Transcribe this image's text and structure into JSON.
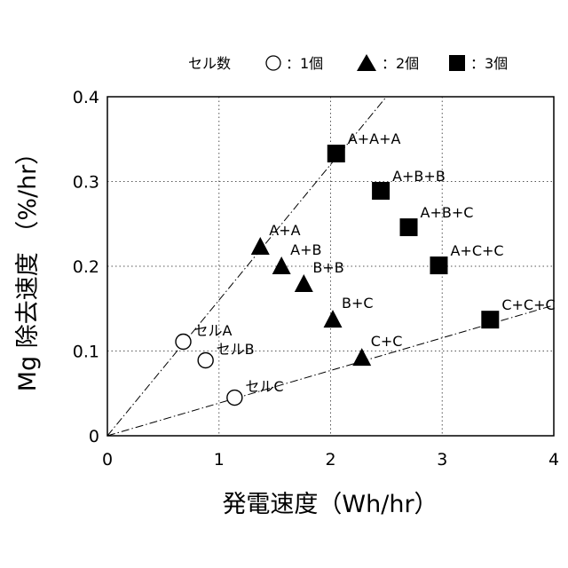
{
  "chart_data": {
    "type": "scatter",
    "title": "",
    "xlabel": "発電速度（Wh/hr）",
    "ylabel": "Mg 除去速度 （%/hr）",
    "xlim": [
      0,
      4
    ],
    "ylim": [
      0,
      0.4
    ],
    "x_ticks": [
      "0",
      "1",
      "2",
      "3",
      "4"
    ],
    "y_ticks": [
      "0",
      "0.1",
      "0.2",
      "0.3",
      "0.4"
    ],
    "grid": true,
    "legend_placement": "top",
    "legend": {
      "title": "セル数",
      "entries": [
        {
          "marker": "circle-open",
          "label": "：1個"
        },
        {
          "marker": "triangle-filled",
          "label": "：2個"
        },
        {
          "marker": "square-filled",
          "label": "：3個"
        }
      ]
    },
    "series": [
      {
        "marker": "circle-open",
        "points": [
          {
            "label": "セルA",
            "x": 0.68,
            "y": 0.111
          },
          {
            "label": "セルB",
            "x": 0.88,
            "y": 0.089
          },
          {
            "label": "セルC",
            "x": 1.14,
            "y": 0.045
          }
        ]
      },
      {
        "marker": "triangle-filled",
        "points": [
          {
            "label": "A+A",
            "x": 1.37,
            "y": 0.222
          },
          {
            "label": "A+B",
            "x": 1.56,
            "y": 0.199
          },
          {
            "label": "B+B",
            "x": 1.76,
            "y": 0.178
          },
          {
            "label": "B+C",
            "x": 2.02,
            "y": 0.136
          },
          {
            "label": "C+C",
            "x": 2.28,
            "y": 0.091
          }
        ]
      },
      {
        "marker": "square-filled",
        "points": [
          {
            "label": "A+A+A",
            "x": 2.05,
            "y": 0.333
          },
          {
            "label": "A+B+B",
            "x": 2.45,
            "y": 0.289
          },
          {
            "label": "A+B+C",
            "x": 2.7,
            "y": 0.246
          },
          {
            "label": "A+C+C",
            "x": 2.97,
            "y": 0.201
          },
          {
            "label": "C+C+C",
            "x": 3.43,
            "y": 0.137
          }
        ]
      }
    ],
    "reference_lines": [
      {
        "style": "dash-dot",
        "x0": 0,
        "y0": 0,
        "x1": 2.5,
        "y1": 0.4
      },
      {
        "style": "dash-dot",
        "x0": 0,
        "y0": 0,
        "x1": 4.0,
        "y1": 0.154
      }
    ]
  }
}
